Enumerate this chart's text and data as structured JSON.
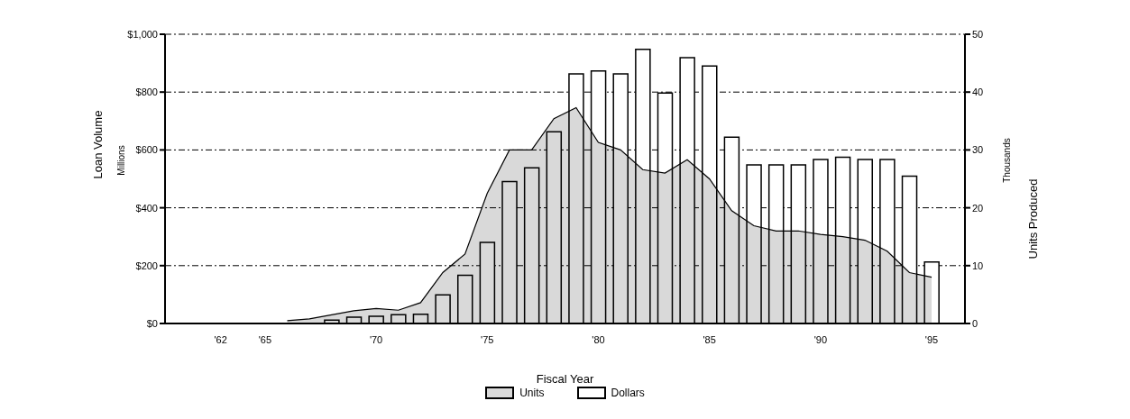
{
  "chart_data": {
    "type": "bar",
    "xlabel": "Fiscal Year",
    "ylabel": "Loan Volume",
    "y2label": "Units Produced",
    "annotations": [
      "Millions",
      "Thousands"
    ],
    "categories": [
      null,
      null,
      "'62",
      null,
      "'65",
      null,
      null,
      null,
      null,
      "'70",
      null,
      null,
      null,
      null,
      "'75",
      null,
      null,
      null,
      null,
      "'80",
      null,
      null,
      null,
      null,
      "'85",
      null,
      null,
      null,
      null,
      "'90",
      null,
      null,
      null,
      null,
      "'95",
      null
    ],
    "series": [
      {
        "name": "Units",
        "type": "area",
        "axis": "y2",
        "color": "#000000",
        "values": [
          null,
          null,
          null,
          null,
          null,
          0.5,
          0.8,
          1.5,
          2.2,
          2.6,
          2.3,
          3.6,
          8.8,
          12,
          22.5,
          30,
          30,
          35.4,
          37.3,
          31.3,
          30,
          26.6,
          26,
          28.3,
          25,
          19.5,
          16.9,
          16,
          16,
          15.4,
          15,
          14.4,
          12.5,
          8.8,
          8,
          null
        ]
      },
      {
        "name": "Dollars",
        "color": "#000000",
        "values": [
          null,
          null,
          null,
          null,
          null,
          null,
          null,
          12,
          22,
          25,
          30,
          32,
          99,
          167,
          280,
          491,
          538,
          663,
          863,
          873,
          863,
          948,
          797,
          919,
          890,
          644,
          548,
          548,
          548,
          567,
          575,
          567,
          567,
          509,
          213,
          null
        ]
      }
    ],
    "ylim": [
      0,
      1000
    ],
    "yticks": [
      {
        "value": 0,
        "label": "$0"
      },
      {
        "value": 200,
        "label": "$200"
      },
      {
        "value": 400,
        "label": "$400"
      },
      {
        "value": 600,
        "label": "$600"
      },
      {
        "value": 800,
        "label": "$800"
      },
      {
        "value": 1000,
        "label": "$1,000"
      }
    ],
    "y2lim": [
      0,
      50
    ],
    "y2ticks": [
      0,
      10,
      20,
      30,
      40,
      50
    ],
    "grid": "y",
    "legend": "bottom"
  }
}
